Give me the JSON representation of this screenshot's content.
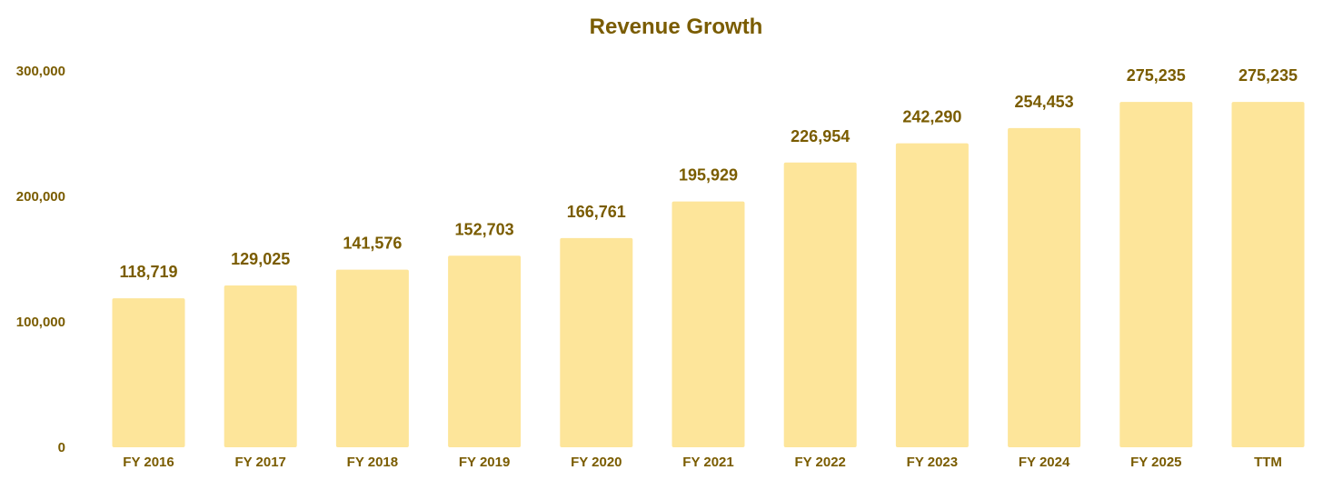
{
  "chart_data": {
    "type": "bar",
    "title": "Revenue Growth",
    "xlabel": "",
    "ylabel": "",
    "categories": [
      "FY 2016",
      "FY 2017",
      "FY 2018",
      "FY 2019",
      "FY 2020",
      "FY 2021",
      "FY 2022",
      "FY 2023",
      "FY 2024",
      "FY 2025",
      "TTM"
    ],
    "values": [
      118719,
      129025,
      141576,
      152703,
      166761,
      195929,
      226954,
      242290,
      254453,
      275235,
      275235
    ],
    "value_labels": [
      "118,719",
      "129,025",
      "141,576",
      "152,703",
      "166,761",
      "195,929",
      "226,954",
      "242,290",
      "254,453",
      "275,235",
      "275,235"
    ],
    "ylim": [
      0,
      300000
    ],
    "yticks": [
      0,
      100000,
      200000,
      300000
    ],
    "ytick_labels": [
      "0",
      "100,000",
      "200,000",
      "300,000"
    ],
    "grid": false,
    "legend": "none"
  },
  "colors": {
    "bar": "#FDE59A",
    "text": "#7A5C00",
    "background": "#FFFFFF"
  }
}
